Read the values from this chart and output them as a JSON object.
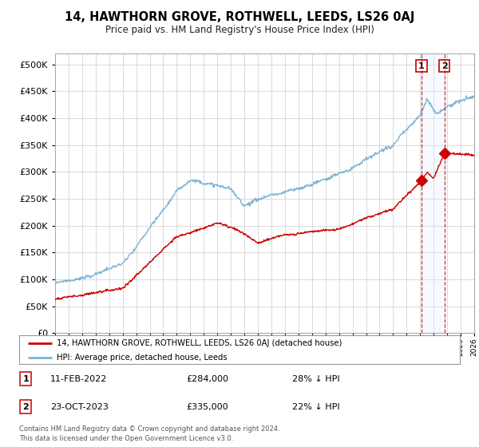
{
  "title": "14, HAWTHORN GROVE, ROTHWELL, LEEDS, LS26 0AJ",
  "subtitle": "Price paid vs. HM Land Registry's House Price Index (HPI)",
  "legend_label_red": "14, HAWTHORN GROVE, ROTHWELL, LEEDS, LS26 0AJ (detached house)",
  "legend_label_blue": "HPI: Average price, detached house, Leeds",
  "annotation1_date": "11-FEB-2022",
  "annotation1_price": "£284,000",
  "annotation1_hpi": "28% ↓ HPI",
  "annotation2_date": "23-OCT-2023",
  "annotation2_price": "£335,000",
  "annotation2_hpi": "22% ↓ HPI",
  "footer": "Contains HM Land Registry data © Crown copyright and database right 2024.\nThis data is licensed under the Open Government Licence v3.0.",
  "red_color": "#cc0000",
  "blue_color": "#7fb3d3",
  "shade_color": "#ddeeff",
  "background_color": "#ffffff",
  "grid_color": "#cccccc",
  "ylim": [
    0,
    520000
  ],
  "yticks": [
    0,
    50000,
    100000,
    150000,
    200000,
    250000,
    300000,
    350000,
    400000,
    450000,
    500000
  ],
  "purchase1_year": 2022.1,
  "purchase1_value": 284000,
  "purchase2_year": 2023.8,
  "purchase2_value": 335000
}
